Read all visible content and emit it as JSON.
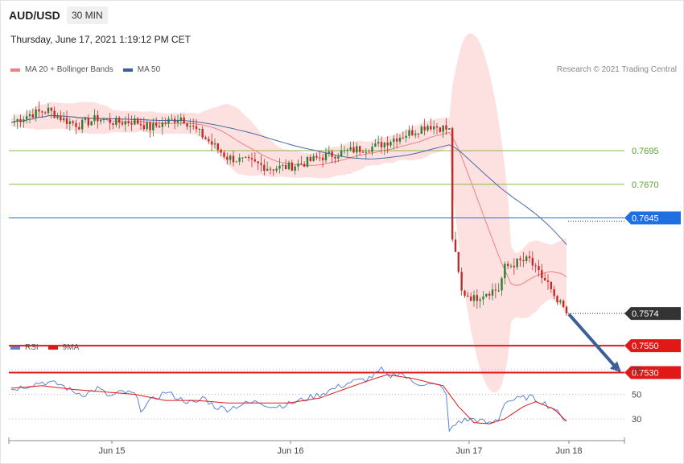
{
  "header": {
    "symbol": "AUD/USD",
    "timeframe": "30 MIN",
    "datetime": "Thursday, June 17, 2021 1:19:12 PM CET"
  },
  "price_legend": [
    {
      "label": "MA 20 + Bollinger Bands",
      "color": "#f08080"
    },
    {
      "label": "MA 50",
      "color": "#3a5f99"
    }
  ],
  "credit": "Research © 2021 Trading Central",
  "rsi_legend": [
    {
      "label": "RSI",
      "color": "#5b84d6"
    },
    {
      "label": "9MA",
      "color": "#e01818"
    }
  ],
  "chart_data": [
    {
      "type": "candlestick",
      "title": "AUD/USD",
      "ylim": [
        0.7505,
        0.7775
      ],
      "x_ticks": [
        "Jun 15",
        "Jun 16",
        "Jun 17",
        "Jun 18"
      ],
      "levels": [
        {
          "value": "0.7695",
          "kind": "resistance-minor",
          "color": "#8cb84f"
        },
        {
          "value": "0.7670",
          "kind": "resistance-minor",
          "color": "#8cb84f"
        },
        {
          "value": "0.7645",
          "kind": "pivot",
          "color": "#1f6fe0"
        },
        {
          "value": "0.7574",
          "kind": "last-price",
          "color": "#333333"
        },
        {
          "value": "0.7550",
          "kind": "support",
          "color": "#e01818"
        },
        {
          "value": "0.7530",
          "kind": "support",
          "color": "#e01818"
        }
      ],
      "close_anchors": [
        [
          0,
          0.7716
        ],
        [
          6,
          0.7722
        ],
        [
          12,
          0.7725
        ],
        [
          17,
          0.7718
        ],
        [
          22,
          0.7714
        ],
        [
          28,
          0.7719
        ],
        [
          34,
          0.7716
        ],
        [
          40,
          0.7717
        ],
        [
          45,
          0.7712
        ],
        [
          50,
          0.7716
        ],
        [
          55,
          0.772
        ],
        [
          60,
          0.771
        ],
        [
          65,
          0.77
        ],
        [
          70,
          0.769
        ],
        [
          78,
          0.7686
        ],
        [
          84,
          0.7682
        ],
        [
          90,
          0.7683
        ],
        [
          95,
          0.7686
        ],
        [
          100,
          0.769
        ],
        [
          106,
          0.7693
        ],
        [
          112,
          0.7696
        ],
        [
          118,
          0.7698
        ],
        [
          124,
          0.7704
        ],
        [
          130,
          0.7709
        ],
        [
          135,
          0.7714
        ],
        [
          140,
          0.7712
        ],
        [
          142,
          0.771
        ],
        [
          143,
          0.763
        ],
        [
          146,
          0.759
        ],
        [
          150,
          0.7585
        ],
        [
          154,
          0.759
        ],
        [
          158,
          0.7592
        ],
        [
          160,
          0.7608
        ],
        [
          164,
          0.7612
        ],
        [
          168,
          0.7614
        ],
        [
          170,
          0.7606
        ],
        [
          174,
          0.7596
        ],
        [
          176,
          0.7584
        ],
        [
          179,
          0.7578
        ],
        [
          180,
          0.7574
        ]
      ],
      "ma20_bands": "shown",
      "ma50": "shown",
      "forecast_arrow": {
        "from": 0.7574,
        "to": 0.753,
        "color": "#3a5f99"
      }
    },
    {
      "type": "line",
      "title": "RSI",
      "ylim": [
        20,
        75
      ],
      "y_ticks": [
        "70",
        "50",
        "30"
      ],
      "series": [
        {
          "name": "RSI",
          "anchors": [
            [
              0,
              54
            ],
            [
              5,
              57
            ],
            [
              10,
              60
            ],
            [
              16,
              58
            ],
            [
              20,
              52
            ],
            [
              24,
              50
            ],
            [
              28,
              55
            ],
            [
              32,
              48
            ],
            [
              36,
              52
            ],
            [
              40,
              50
            ],
            [
              42,
              38
            ],
            [
              45,
              44
            ],
            [
              50,
              52
            ],
            [
              55,
              46
            ],
            [
              60,
              42
            ],
            [
              62,
              48
            ],
            [
              66,
              40
            ],
            [
              70,
              38
            ],
            [
              75,
              42
            ],
            [
              80,
              44
            ],
            [
              85,
              40
            ],
            [
              90,
              42
            ],
            [
              95,
              46
            ],
            [
              100,
              50
            ],
            [
              105,
              55
            ],
            [
              110,
              60
            ],
            [
              115,
              62
            ],
            [
              118,
              66
            ],
            [
              120,
              70
            ],
            [
              122,
              64
            ],
            [
              126,
              68
            ],
            [
              130,
              60
            ],
            [
              135,
              58
            ],
            [
              140,
              56
            ],
            [
              141,
              48
            ],
            [
              142,
              20
            ],
            [
              145,
              28
            ],
            [
              150,
              30
            ],
            [
              155,
              26
            ],
            [
              158,
              30
            ],
            [
              160,
              44
            ],
            [
              164,
              46
            ],
            [
              168,
              48
            ],
            [
              172,
              44
            ],
            [
              176,
              38
            ],
            [
              178,
              32
            ],
            [
              180,
              30
            ]
          ]
        },
        {
          "name": "9MA",
          "anchors": [
            [
              0,
              55
            ],
            [
              10,
              57
            ],
            [
              20,
              54
            ],
            [
              30,
              52
            ],
            [
              40,
              50
            ],
            [
              50,
              45
            ],
            [
              60,
              45
            ],
            [
              70,
              43
            ],
            [
              80,
              43
            ],
            [
              90,
              43
            ],
            [
              100,
              47
            ],
            [
              110,
              56
            ],
            [
              118,
              63
            ],
            [
              122,
              66
            ],
            [
              130,
              63
            ],
            [
              140,
              57
            ],
            [
              145,
              40
            ],
            [
              150,
              27
            ],
            [
              155,
              26
            ],
            [
              160,
              30
            ],
            [
              166,
              40
            ],
            [
              170,
              44
            ],
            [
              176,
              38
            ],
            [
              180,
              28
            ]
          ]
        }
      ]
    }
  ]
}
